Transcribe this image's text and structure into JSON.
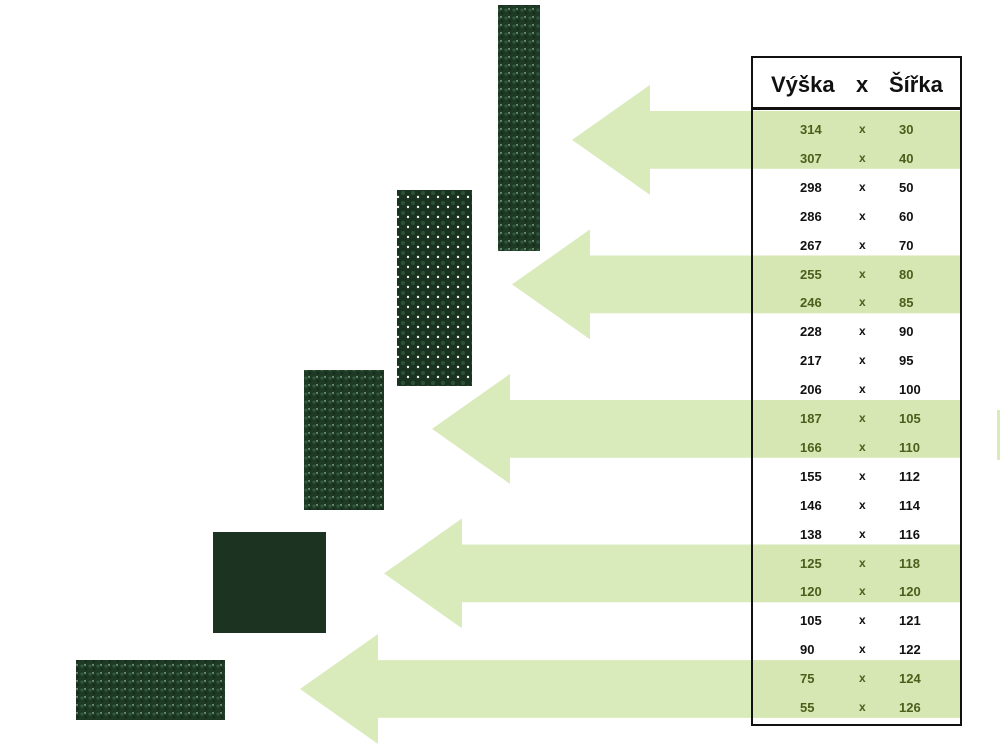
{
  "table": {
    "header": {
      "height": "Výška",
      "x": "x",
      "width": "Šířka"
    },
    "rows": [
      {
        "h": "314",
        "x": "x",
        "w": "30",
        "highlight": true
      },
      {
        "h": "307",
        "x": "x",
        "w": "40",
        "highlight": true
      },
      {
        "h": "298",
        "x": "x",
        "w": "50",
        "highlight": false
      },
      {
        "h": "286",
        "x": "x",
        "w": "60",
        "highlight": false
      },
      {
        "h": "267",
        "x": "x",
        "w": "70",
        "highlight": false
      },
      {
        "h": "255",
        "x": "x",
        "w": "80",
        "highlight": true
      },
      {
        "h": "246",
        "x": "x",
        "w": "85",
        "highlight": true
      },
      {
        "h": "228",
        "x": "x",
        "w": "90",
        "highlight": false
      },
      {
        "h": "217",
        "x": "x",
        "w": "95",
        "highlight": false
      },
      {
        "h": "206",
        "x": "x",
        "w": "100",
        "highlight": false
      },
      {
        "h": "187",
        "x": "x",
        "w": "105",
        "highlight": true
      },
      {
        "h": "166",
        "x": "x",
        "w": "110",
        "highlight": true
      },
      {
        "h": "155",
        "x": "x",
        "w": "112",
        "highlight": false
      },
      {
        "h": "146",
        "x": "x",
        "w": "114",
        "highlight": false
      },
      {
        "h": "138",
        "x": "x",
        "w": "116",
        "highlight": false
      },
      {
        "h": "125",
        "x": "x",
        "w": "118",
        "highlight": true
      },
      {
        "h": "120",
        "x": "x",
        "w": "120",
        "highlight": true
      },
      {
        "h": "105",
        "x": "x",
        "w": "121",
        "highlight": false
      },
      {
        "h": "90",
        "x": "x",
        "w": "122",
        "highlight": false
      },
      {
        "h": "75",
        "x": "x",
        "w": "124",
        "highlight": true
      },
      {
        "h": "55",
        "x": "x",
        "w": "126",
        "highlight": true
      }
    ]
  },
  "colors": {
    "highlight": "#d6e7b3",
    "arrow": "#d9ebbb",
    "hedge": "#1f3a26",
    "highlight_text": "#4d5e1c"
  },
  "icons": [
    "arrow-left-icon",
    "hedge-panel-image"
  ]
}
